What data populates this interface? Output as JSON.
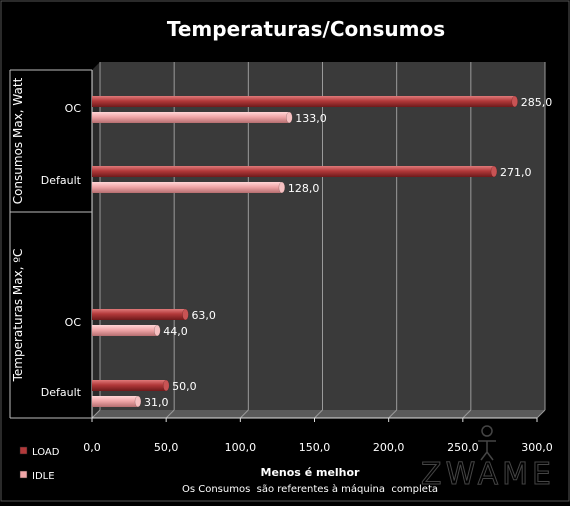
{
  "chart_data": {
    "type": "bar",
    "orientation": "horizontal",
    "title": "Temperaturas/Consumos",
    "xlabel": "Menos é melhor",
    "note": "Os Consumos  são referentes à máquina  completa",
    "xlim": [
      0,
      300
    ],
    "xticks": [
      0,
      50,
      100,
      150,
      200,
      250,
      300
    ],
    "xtick_labels": [
      "0,0",
      "50,0",
      "100,0",
      "150,0",
      "200,0",
      "250,0",
      "300,0"
    ],
    "groups": [
      {
        "label": "Consumos Max, Watt",
        "categories": [
          "OC",
          "Default"
        ]
      },
      {
        "label": "Temperaturas Max, ºC",
        "categories": [
          "OC",
          "Default"
        ]
      }
    ],
    "categories": [
      "OC",
      "Default",
      "OC",
      "Default"
    ],
    "series": [
      {
        "name": "LOAD",
        "color": "#b2393a",
        "values": [
          285.0,
          271.0,
          63.0,
          50.0
        ],
        "labels": [
          "285,0",
          "271,0",
          "63,0",
          "50,0"
        ]
      },
      {
        "name": "IDLE",
        "color": "#f0a6a8",
        "values": [
          133.0,
          128.0,
          44.0,
          31.0
        ],
        "labels": [
          "133,0",
          "128,0",
          "44,0",
          "31,0"
        ]
      }
    ],
    "grid": true,
    "legend_position": "bottom-left"
  },
  "watermark": "ZWAME",
  "colors": {
    "background": "#000000",
    "plot_back": "#3a3a3a",
    "plot_floor": "#5a5a5a",
    "grid": "#9a9a9a",
    "text": "#ffffff"
  }
}
